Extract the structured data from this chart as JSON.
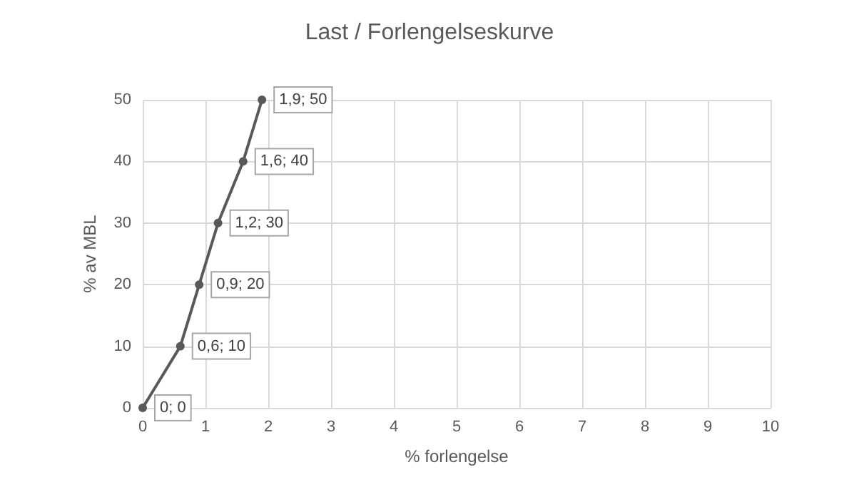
{
  "chart_data": {
    "type": "line",
    "title": "Last / Forlengelseskurve",
    "xlabel": "% forlengelse",
    "ylabel": "% av MBL",
    "x": [
      0,
      0.6,
      0.9,
      1.2,
      1.6,
      1.9
    ],
    "series": [
      {
        "color": "#595959",
        "values": [
          0,
          10,
          20,
          30,
          40,
          50
        ],
        "value_labels": [
          "0; 0",
          "0,6; 10",
          "0,9; 20",
          "1,2; 30",
          "1,6; 40",
          "1,9; 50"
        ]
      }
    ],
    "xlim": [
      0,
      10
    ],
    "xticks": [
      0,
      1,
      2,
      3,
      4,
      5,
      6,
      7,
      8,
      9,
      10
    ],
    "ylim": [
      0,
      50
    ],
    "yticks": [
      0,
      10,
      20,
      30,
      40,
      50
    ],
    "grid": true,
    "marker": "circle",
    "line_style": "solid"
  }
}
